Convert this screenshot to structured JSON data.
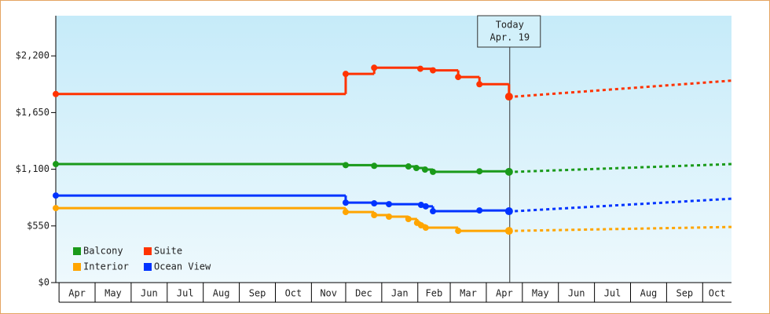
{
  "chart_data": {
    "type": "step",
    "xlim": [
      -0.09,
      18.65
    ],
    "xticks": [
      {
        "value": 0,
        "label": "Apr"
      },
      {
        "value": 1,
        "label": "May"
      },
      {
        "value": 2,
        "label": "Jun"
      },
      {
        "value": 3,
        "label": "Jul"
      },
      {
        "value": 4,
        "label": "Aug"
      },
      {
        "value": 5,
        "label": "Sep"
      },
      {
        "value": 6,
        "label": "Oct"
      },
      {
        "value": 7,
        "label": "Nov"
      },
      {
        "value": 7.95,
        "label": "Dec"
      },
      {
        "value": 8.95,
        "label": "Jan"
      },
      {
        "value": 9.95,
        "label": "Feb"
      },
      {
        "value": 10.85,
        "label": "Mar"
      },
      {
        "value": 11.85,
        "label": "Apr"
      },
      {
        "value": 12.85,
        "label": "May"
      },
      {
        "value": 13.85,
        "label": "Jun"
      },
      {
        "value": 14.85,
        "label": "Jul"
      },
      {
        "value": 15.85,
        "label": "Aug"
      },
      {
        "value": 16.85,
        "label": "Sep"
      },
      {
        "value": 17.85,
        "label": "Oct"
      }
    ],
    "ylim": [
      0,
      2590
    ],
    "yticks": [
      {
        "value": 0,
        "label": "$0"
      },
      {
        "value": 550,
        "label": "$550"
      },
      {
        "value": 1100,
        "label": "$1,100"
      },
      {
        "value": 1650,
        "label": "$1,650"
      },
      {
        "value": 2200,
        "label": "$2,200"
      }
    ],
    "annotation": {
      "text": [
        "Today",
        "Apr. 19"
      ],
      "x": 12.5
    },
    "legend": "bottom-left",
    "series": [
      {
        "name": "Balcony",
        "color": "#1a9a1a",
        "x": [
          -0.09,
          7.95,
          8.74,
          9.69,
          9.91,
          10.15,
          10.37,
          11.66,
          12.48
        ],
        "values": [
          1150,
          1140,
          1133,
          1127,
          1112,
          1097,
          1075,
          1080,
          1075
        ],
        "forecast": {
          "x": [
            12.64,
            18.65
          ],
          "values": [
            1075,
            1150
          ]
        }
      },
      {
        "name": "Suite",
        "color": "#ff3300",
        "x": [
          -0.09,
          7.95,
          8.74,
          10.02,
          10.37,
          11.07,
          11.66,
          12.48
        ],
        "values": [
          1830,
          2025,
          2085,
          2075,
          2060,
          1995,
          1925,
          1805
        ],
        "forecast": {
          "x": [
            12.64,
            18.65
          ],
          "values": [
            1805,
            1960
          ]
        }
      },
      {
        "name": "Interior",
        "color": "#ffa500",
        "x": [
          -0.09,
          7.95,
          8.74,
          9.15,
          9.69,
          9.93,
          10.04,
          10.17,
          11.07,
          12.48
        ],
        "values": [
          723,
          685,
          655,
          640,
          617,
          580,
          556,
          533,
          502,
          502
        ],
        "forecast": {
          "x": [
            12.64,
            18.65
          ],
          "values": [
            502,
            540
          ]
        }
      },
      {
        "name": "Ocean View",
        "color": "#0033ff",
        "x": [
          -0.09,
          7.95,
          8.74,
          9.15,
          10.04,
          10.17,
          10.37,
          11.66,
          12.48
        ],
        "values": [
          845,
          776,
          769,
          761,
          754,
          740,
          693,
          700,
          693
        ],
        "forecast": {
          "x": [
            12.64,
            18.65
          ],
          "values": [
            693,
            814
          ]
        }
      }
    ]
  }
}
